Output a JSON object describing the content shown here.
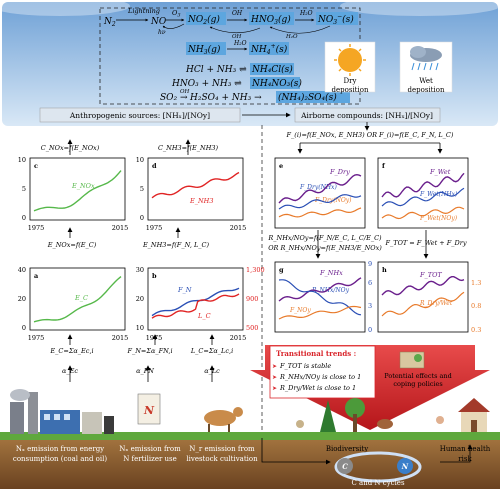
{
  "chem": {
    "lightning": "Lightning",
    "n2": "N",
    "n2_sub": "2",
    "no": "NO",
    "o3": "O",
    "o3_sub": "3",
    "no2": "NO",
    "no2_sub": "2",
    "no2_state": "(g)",
    "hno3": "HNO",
    "hno3_sub": "3",
    "hno3_state": "(g)",
    "h2o": "H₂O",
    "no3ion": "NO",
    "no3ion_sub": "3",
    "no3ion_sup": "−",
    "no3ion_state": "(s)",
    "oh": "OH",
    "hv": "hν",
    "nh3_main": "NH",
    "nh3_sub": "3",
    "nh3_state": "(g)",
    "nh4ion": "NH",
    "nh4ion_sub": "4",
    "nh4ion_sup": "+",
    "nh4ion_state": "(s)",
    "r1_left": "HCl + NH₃ ⇌",
    "r1_right": "NH₄Cl(s)",
    "r2_left": "HNO₃ + NH₃ ⇌",
    "r2_right": "NH₄NO₃(s)",
    "r3_left": "SO₂ →",
    "r3_oh": "OH",
    "r3_mid": "H₂SO₄ + NH₃ →",
    "r3_right": "(NH₄)₂SO₄(s)"
  },
  "weather": {
    "dry_label": "Dry\ndeposition",
    "wet_label": "Wet\ndeposition"
  },
  "headers": {
    "anthropogenic": "Anthropogenic sources: [NHₓ]/[NOy]",
    "airborne": "Airborne compounds: [NHₓ]/[NOy]"
  },
  "equations": {
    "c_nox": "C_NOx=f(E_NOx)",
    "c_nh3": "C_NH3=f(E_NH3)",
    "f_top": "F_(i)=f(E_NOx, E_NH3)   OR   F_(i)=f(E_C, F_N, L_C)",
    "e_nox": "E_NOx=f(E_C)",
    "e_nh3": "E_NH3=f(F_N, L_C)",
    "r_mid1": "R_NHx/NOy=f(F_N/E_C, L_C/E_C)",
    "r_mid2": "OR  R_NHx/NOy=f(E_NH3/E_NOx)",
    "f_tot": "F_TOT = F_Wet + F_Dry",
    "ec_sum": "E_C=Σα_Ec,i",
    "fn_sum": "F_N=Σα_FN,i",
    "lc_sum": "L_C=Σα_Lc,i",
    "a_ec": "α_Ec",
    "a_fn": "α_FN",
    "a_lc": "α_Lc"
  },
  "panels": {
    "a": {
      "letter": "a",
      "series_label": "E_C",
      "y_ticks": [
        "0",
        "20",
        "40"
      ],
      "x_ticks": [
        "1975",
        "2015"
      ]
    },
    "b": {
      "letter": "b",
      "series_fn": "F_N",
      "series_lc": "L_C",
      "y_ticks": [
        "10",
        "20",
        "30"
      ],
      "y_right": [
        "500",
        "900",
        "1,300"
      ],
      "x_ticks": [
        "1975",
        "2015"
      ]
    },
    "c": {
      "letter": "c",
      "series_label": "E_NOx",
      "y_ticks": [
        "0",
        "5",
        "10"
      ],
      "x_ticks": [
        "1975",
        "2015"
      ]
    },
    "d": {
      "letter": "d",
      "series_label": "E_NH3",
      "y_ticks": [
        "0",
        "5",
        "10"
      ],
      "x_ticks": [
        "1975",
        "2015"
      ]
    },
    "e": {
      "letter": "e",
      "s1": "F_Dry",
      "s2": "F_Dry(NHx)",
      "s3": "F_Dry(NOy)"
    },
    "f": {
      "letter": "f",
      "s1": "F_Wet",
      "s2": "F_Wet(NHx)",
      "s3": "F_Wet(NOy)"
    },
    "g": {
      "letter": "g",
      "s1": "F_NHx",
      "s2": "R_NHx/NOy",
      "s3": "F_NOy",
      "y_right": [
        "0",
        "3",
        "6",
        "9"
      ]
    },
    "h": {
      "letter": "h",
      "s1": "F_TOT",
      "s2": "R_Dry/Wet",
      "y_right": [
        "0.3",
        "0.8",
        "1.3"
      ]
    }
  },
  "trends": {
    "title": "Transitional trends :",
    "items": [
      "F_TOT is stable",
      "R_NHx/NOy is close to 1",
      "R_Dry/Wet is close to 1"
    ]
  },
  "bottom": {
    "label1": "Nₓ emission from energy\nconsumption (coal and oil)",
    "label2": "Nₓ emission from\nN fertilizer use",
    "label3": "N_r emission from\nlivestock cultivation",
    "biodiversity": "Biodiversity",
    "health": "Human health\nrisk",
    "cycles": "C and N cycles",
    "potential": "Potential effects and\ncoping policies",
    "fert_letter": "N"
  },
  "colors": {
    "sky_top": "#6fa1d6",
    "sky_bottom": "#c8dcf1",
    "highlight_box": "#5da6df",
    "green": "#56b84a",
    "red": "#e02424",
    "blue": "#2a4fb5",
    "purple": "#6a1f8c",
    "orange": "#e87a2a",
    "arrow_red": "#d9262c",
    "soil": "#8b5a2b"
  }
}
